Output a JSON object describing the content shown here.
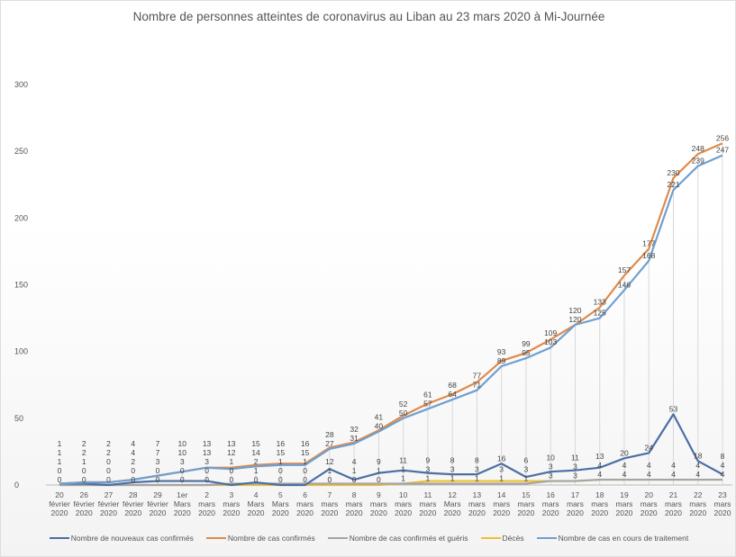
{
  "chart_data": {
    "type": "line",
    "title": "Nombre de personnes  atteintes de coronavirus  au Liban au 23 mars 2020 à Mi-Journée",
    "xlabel": "",
    "ylabel": "",
    "ylim": [
      0,
      300
    ],
    "yticks": [
      0,
      50,
      100,
      150,
      200,
      250,
      300
    ],
    "grid": false,
    "legend": "bottom",
    "categories": [
      [
        "20",
        "février",
        "2020"
      ],
      [
        "26",
        "février",
        "2020"
      ],
      [
        "27",
        "février",
        "2020"
      ],
      [
        "28",
        "février",
        "2020"
      ],
      [
        "29",
        "février",
        "2020"
      ],
      [
        "1er",
        "Mars",
        "2020"
      ],
      [
        "2 mars",
        "2020"
      ],
      [
        "3 mars",
        "2020"
      ],
      [
        "4 Mars",
        "2020"
      ],
      [
        "5 Mars",
        "2020"
      ],
      [
        "6 mars",
        "2020"
      ],
      [
        "7 mars",
        "2020"
      ],
      [
        "8 mars",
        "2020"
      ],
      [
        "9 mars",
        "2020"
      ],
      [
        "10",
        "mars",
        "2020"
      ],
      [
        "11",
        "mars",
        "2020"
      ],
      [
        "12",
        "Mars",
        "2020"
      ],
      [
        "13",
        "mars",
        "2020"
      ],
      [
        "14",
        "mars",
        "2020"
      ],
      [
        "15",
        "mars",
        "2020"
      ],
      [
        "16",
        "mars",
        "2020"
      ],
      [
        "17",
        "mars",
        "2020"
      ],
      [
        "18",
        "mars",
        "2020"
      ],
      [
        "19",
        "mars",
        "2020"
      ],
      [
        "20",
        "mars",
        "2020"
      ],
      [
        "21",
        "mars",
        "2020"
      ],
      [
        "22",
        "mars",
        "2020"
      ],
      [
        "23",
        "mars",
        "2020"
      ]
    ],
    "series": [
      {
        "name": "Nombre de nouveaux cas confirmés",
        "color": "#4a6fa5",
        "values": [
          1,
          1,
          0,
          2,
          3,
          3,
          3,
          0,
          2,
          0,
          0,
          12,
          4,
          9,
          11,
          9,
          8,
          8,
          16,
          6,
          10,
          11,
          13,
          20,
          24,
          53,
          18,
          8
        ]
      },
      {
        "name": "Nombre de cas confirmés",
        "color": "#e08a4a",
        "values": [
          1,
          2,
          2,
          4,
          7,
          10,
          13,
          13,
          15,
          16,
          16,
          28,
          32,
          41,
          52,
          61,
          68,
          77,
          93,
          99,
          109,
          120,
          133,
          157,
          177,
          230,
          248,
          256
        ]
      },
      {
        "name": "Nombre de cas confirmés et guéris",
        "color": "#a5a5a5",
        "values": [
          0,
          0,
          0,
          0,
          0,
          0,
          0,
          1,
          1,
          1,
          1,
          1,
          1,
          1,
          1,
          1,
          1,
          1,
          1,
          1,
          3,
          3,
          4,
          4,
          4,
          4,
          4,
          4
        ]
      },
      {
        "name": "Décès",
        "color": "#f0c030",
        "values": [
          0,
          0,
          0,
          0,
          0,
          0,
          0,
          0,
          0,
          0,
          0,
          0,
          0,
          0,
          1,
          3,
          3,
          3,
          3,
          3,
          3,
          3,
          4,
          4,
          4,
          4,
          4,
          4
        ]
      },
      {
        "name": "Nombre de cas en cours de traitement",
        "color": "#6f9fd0",
        "values": [
          1,
          2,
          2,
          4,
          7,
          10,
          13,
          12,
          14,
          15,
          15,
          27,
          31,
          40,
          50,
          57,
          64,
          71,
          89,
          95,
          103,
          120,
          125,
          146,
          168,
          221,
          239,
          247
        ]
      }
    ]
  }
}
